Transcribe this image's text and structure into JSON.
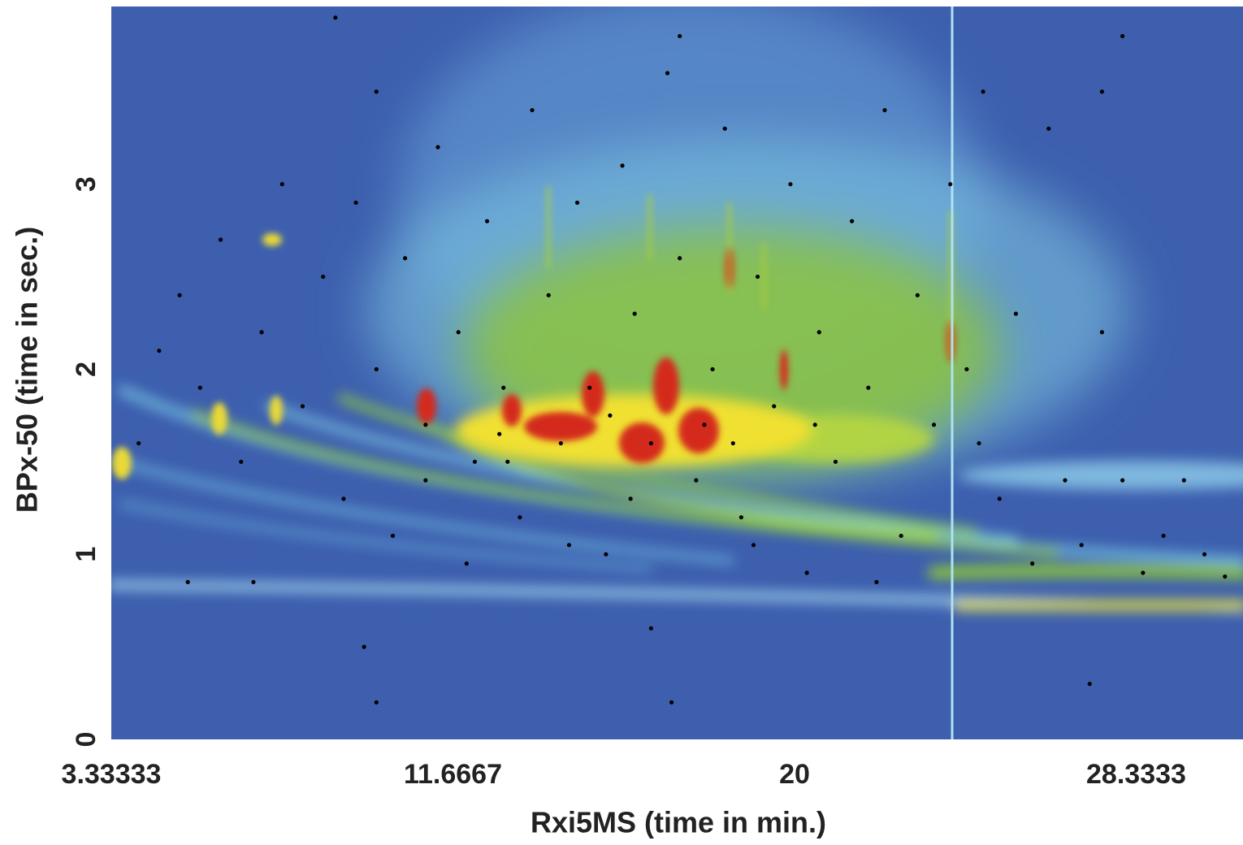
{
  "chart_data": {
    "type": "scatter",
    "x_label": "Rxi5MS (time in min.)",
    "y_label": "BPx-50 (time in sec.)",
    "color": "#000000",
    "xlim": [
      3.33333,
      30.94
    ],
    "xticks": [
      3.33333,
      11.6667,
      20,
      28.3333
    ],
    "ylim": [
      0,
      3.96
    ],
    "yticks": [
      0,
      1,
      2,
      3
    ],
    "grid": false,
    "x": [
      4.0,
      4.5,
      5.0,
      5.5,
      6.0,
      6.5,
      7.0,
      7.5,
      8.0,
      8.5,
      9.0,
      9.3,
      9.8,
      10.2,
      10.5,
      11.0,
      11.3,
      11.8,
      12.2,
      12.5,
      12.9,
      13.3,
      13.6,
      14.0,
      14.3,
      14.7,
      15.0,
      15.4,
      15.8,
      16.1,
      16.5,
      16.9,
      17.2,
      17.6,
      18.0,
      18.3,
      18.7,
      19.1,
      19.5,
      19.9,
      20.3,
      20.6,
      21.0,
      21.4,
      21.8,
      22.2,
      22.6,
      23.0,
      23.4,
      23.8,
      24.2,
      24.6,
      25.0,
      25.4,
      25.8,
      26.2,
      26.6,
      27.0,
      27.5,
      28.0,
      28.5,
      29.0,
      29.5,
      30.0,
      30.5,
      6.8,
      9.5,
      9.8,
      16.5,
      17.0,
      27.2,
      8.8,
      9.8,
      17.2,
      28.0,
      27.5,
      5.2,
      12.0,
      14.5,
      22.0,
      19.0,
      11.0,
      13.0,
      16.0,
      18.5,
      20.5,
      15.5,
      17.8,
      12.8,
      24.5
    ],
    "values": [
      1.6,
      2.1,
      2.4,
      1.9,
      2.7,
      1.5,
      2.2,
      3.0,
      1.8,
      2.5,
      1.3,
      2.9,
      2.0,
      1.1,
      2.6,
      1.7,
      3.2,
      2.2,
      1.5,
      2.8,
      1.9,
      1.2,
      3.4,
      2.4,
      1.6,
      2.9,
      1.9,
      1.0,
      3.1,
      2.3,
      1.6,
      3.6,
      2.6,
      1.4,
      2.0,
      3.3,
      1.2,
      2.5,
      1.8,
      3.0,
      0.9,
      2.2,
      1.5,
      2.8,
      1.9,
      3.4,
      1.1,
      2.4,
      1.7,
      3.0,
      2.0,
      3.5,
      1.3,
      2.3,
      0.95,
      3.3,
      1.4,
      1.05,
      2.2,
      1.4,
      0.9,
      1.1,
      1.4,
      1.0,
      0.88,
      0.85,
      0.5,
      0.2,
      0.6,
      0.2,
      0.3,
      3.9,
      3.5,
      3.8,
      3.8,
      3.5,
      0.85,
      0.95,
      1.05,
      0.85,
      1.05,
      1.4,
      1.5,
      1.3,
      1.6,
      1.7,
      1.75,
      1.7,
      1.65,
      1.6
    ]
  }
}
